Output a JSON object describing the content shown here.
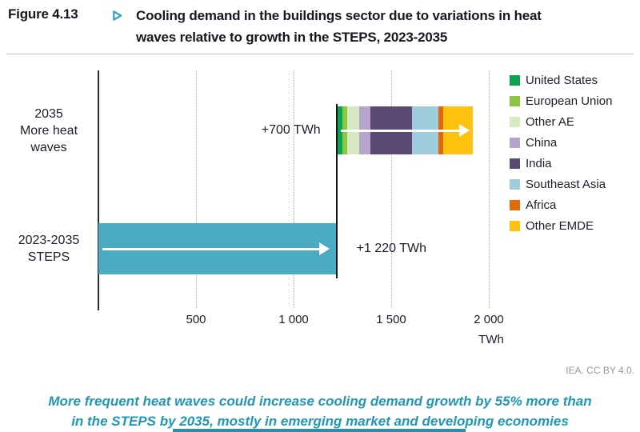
{
  "header": {
    "figure_label": "Figure 4.13",
    "marker_icon": "right-pointing-triangle",
    "title_lines": [
      "Cooling demand in the buildings sector due to variations in heat",
      "waves relative to growth in the STEPS, 2023-2035"
    ]
  },
  "chart_data": {
    "type": "bar",
    "orientation": "horizontal",
    "unit": "TWh",
    "xlim": [
      0,
      2000
    ],
    "ticks": [
      500,
      1000,
      1500,
      2000
    ],
    "tick_labels": [
      "500",
      "1 000",
      "1 500",
      "2 000"
    ],
    "axis_unit_label": "TWh",
    "grid": "vertical-dotted",
    "legend_position": "right",
    "baseline_value": 1220,
    "rows": [
      {
        "label_lines": [
          "2035",
          "More heat",
          "waves"
        ],
        "annotation": "+700 TWh",
        "base": 1220,
        "total": 700,
        "segments": [
          {
            "name": "United States",
            "value": 30,
            "color": "#0ca24f"
          },
          {
            "name": "European Union",
            "value": 25,
            "color": "#8cc540"
          },
          {
            "name": "Other AE",
            "value": 60,
            "color": "#d6e9c1"
          },
          {
            "name": "China",
            "value": 60,
            "color": "#b5a5cd"
          },
          {
            "name": "India",
            "value": 210,
            "color": "#5b4a72"
          },
          {
            "name": "Southeast Asia",
            "value": 135,
            "color": "#a0cdde"
          },
          {
            "name": "Africa",
            "value": 25,
            "color": "#e2680c"
          },
          {
            "name": "Other EMDE",
            "value": 155,
            "color": "#fec10d"
          }
        ]
      },
      {
        "label_lines": [
          "2023-2035",
          "STEPS"
        ],
        "annotation": "+1 220 TWh",
        "base": 0,
        "value": 1220,
        "color": "#4aabc3"
      }
    ]
  },
  "attribution": "IEA. CC BY 4.0.",
  "caption": {
    "lines": [
      "More frequent heat waves could increase cooling demand growth by 55% more than",
      "in the STEPS by 2035, mostly in emerging market and developing economies"
    ]
  },
  "colors": {
    "accent_teal": "#2095b3",
    "steps_bar": "#4aabc3",
    "title_text": "#17171f",
    "attribution_gray": "#969696"
  }
}
